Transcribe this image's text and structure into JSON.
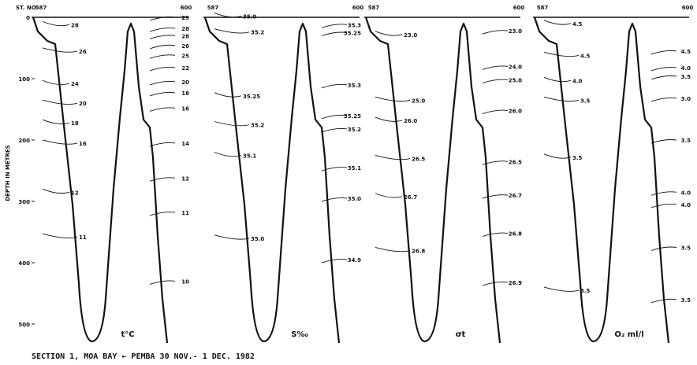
{
  "figure": {
    "station_prefix": "ST. NO.",
    "y_axis_label": "DEPTH IN METRES",
    "y_ticks": [
      "0",
      "100",
      "200",
      "300",
      "400",
      "500"
    ],
    "caption": "SECTION 1, MOA BAY ← PEMBA  30 NOV.- 1 DEC. 1982"
  },
  "panels": [
    {
      "name": "temperature",
      "title": "t°C",
      "station_start": "587",
      "station_end": "600",
      "left_labels": [
        {
          "text": "28",
          "depth": 12
        },
        {
          "text": "26",
          "depth": 55
        },
        {
          "text": "24",
          "depth": 108
        },
        {
          "text": "20",
          "depth": 140
        },
        {
          "text": "18",
          "depth": 172
        },
        {
          "text": "16",
          "depth": 205
        },
        {
          "text": "12",
          "depth": 285
        },
        {
          "text": "11",
          "depth": 358
        }
      ],
      "right_labels": [
        {
          "text": "29",
          "depth": 0
        },
        {
          "text": "28",
          "depth": 18
        },
        {
          "text": "28",
          "depth": 30
        },
        {
          "text": "26",
          "depth": 46
        },
        {
          "text": "25",
          "depth": 62
        },
        {
          "text": "22",
          "depth": 82
        },
        {
          "text": "20",
          "depth": 105
        },
        {
          "text": "18",
          "depth": 123
        },
        {
          "text": "16",
          "depth": 148
        },
        {
          "text": "14",
          "depth": 205
        },
        {
          "text": "12",
          "depth": 262
        },
        {
          "text": "11",
          "depth": 318
        },
        {
          "text": "10",
          "depth": 430
        }
      ]
    },
    {
      "name": "salinity",
      "title": "S‰",
      "station_start": "587",
      "station_end": "600",
      "left_labels": [
        {
          "text": "35.0",
          "depth": -2
        },
        {
          "text": "35.2",
          "depth": 24
        },
        {
          "text": "35.25",
          "depth": 128
        },
        {
          "text": "35.2",
          "depth": 175
        },
        {
          "text": "35.1",
          "depth": 225
        },
        {
          "text": "35.0",
          "depth": 360
        }
      ],
      "right_labels": [
        {
          "text": "35.3",
          "depth": 12
        },
        {
          "text": "35.25",
          "depth": 25
        },
        {
          "text": "35.3",
          "depth": 110
        },
        {
          "text": "35.25",
          "depth": 160
        },
        {
          "text": "35.2",
          "depth": 182
        },
        {
          "text": "35.1",
          "depth": 245
        },
        {
          "text": "35.0",
          "depth": 295
        },
        {
          "text": "34.9",
          "depth": 395
        }
      ]
    },
    {
      "name": "sigma-t",
      "title": "σt",
      "station_start": "587",
      "station_end": "600",
      "left_labels": [
        {
          "text": "23.0",
          "depth": 28
        },
        {
          "text": "25.0",
          "depth": 135
        },
        {
          "text": "26.0",
          "depth": 168
        },
        {
          "text": "26.5",
          "depth": 230
        },
        {
          "text": "26.7",
          "depth": 292
        },
        {
          "text": "26.8",
          "depth": 380
        }
      ],
      "right_labels": [
        {
          "text": "23.0",
          "depth": 22
        },
        {
          "text": "24.0",
          "depth": 80
        },
        {
          "text": "25.0",
          "depth": 102
        },
        {
          "text": "26.0",
          "depth": 152
        },
        {
          "text": "26.5",
          "depth": 235
        },
        {
          "text": "26.7",
          "depth": 290
        },
        {
          "text": "26.8",
          "depth": 352
        },
        {
          "text": "26.9",
          "depth": 432
        }
      ]
    },
    {
      "name": "oxygen",
      "title": "O₂ ml/l",
      "station_start": "587",
      "station_end": "600",
      "left_labels": [
        {
          "text": "4.5",
          "depth": 10
        },
        {
          "text": "4.5",
          "depth": 62
        },
        {
          "text": "4.0",
          "depth": 103
        },
        {
          "text": "3.5",
          "depth": 135
        },
        {
          "text": "3.5",
          "depth": 228
        },
        {
          "text": "3.5",
          "depth": 445
        }
      ],
      "right_labels": [
        {
          "text": "4.5",
          "depth": 55
        },
        {
          "text": "4.0",
          "depth": 82
        },
        {
          "text": "3.5",
          "depth": 96
        },
        {
          "text": "3.0",
          "depth": 132
        },
        {
          "text": "3.5",
          "depth": 200
        },
        {
          "text": "4.0",
          "depth": 285
        },
        {
          "text": "4.0",
          "depth": 305
        },
        {
          "text": "3.5",
          "depth": 375
        },
        {
          "text": "3.5",
          "depth": 460
        }
      ]
    }
  ]
}
